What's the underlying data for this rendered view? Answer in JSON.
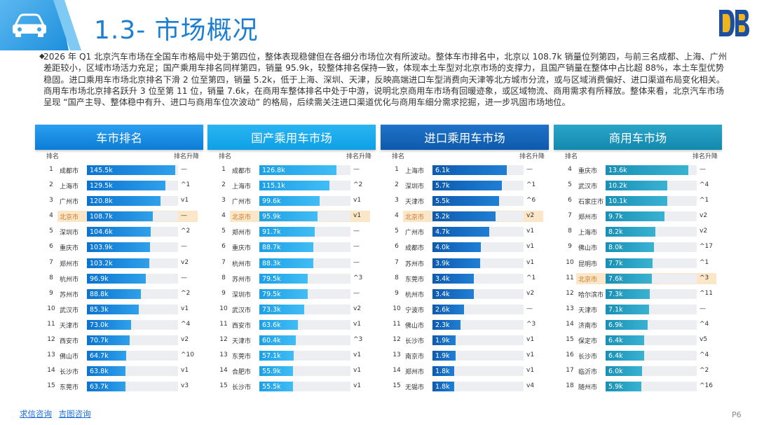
{
  "header": {
    "title": "1.3- 市场概况"
  },
  "intro": "2026 年 Q1 北京汽车市场在全国车市格局中处于第四位，整体表现稳健但在各细分市场位次有所波动。整体车市排名中，北京以 108.7k 销量位列第四，与前三名成都、上海、广州差距较小，区域市场活力充足；国产乘用车排名同样第四，销量 95.9k，较整体排名保持一致，体现本土车型对北京市场的支撑力，且国产销量在整体中占比超 88%，本土车型优势稳固。进口乘用车市场北京排名下滑 2 位至第四，销量 5.2k，低于上海、深圳、天津，反映高端进口车型消费向天津等北方城市分流，或与区域消费偏好、进口渠道布局变化相关。商用车市场北京排名跃升 3 位至第 11 位，销量 7.6k，在商用车整体排名中处于中游，说明北京商用车市场有回暖迹象，或区域物流、商用需求有所释放。整体来看，北京汽车市场呈现 “国产主导、整体稳中有升、进口与商用车位次波动” 的格局，后续需关注进口渠道优化与商用车细分需求挖掘，进一步巩固市场地位。",
  "col_rank": "排名",
  "col_change": "排名升降",
  "panels": [
    {
      "title": "车市排名",
      "max": 150,
      "rows": [
        {
          "rank": "1",
          "city": "成都市",
          "val": "145.5k",
          "num": 145.5,
          "chg": "—"
        },
        {
          "rank": "2",
          "city": "上海市",
          "val": "129.5k",
          "num": 129.5,
          "chg": "^1"
        },
        {
          "rank": "3",
          "city": "广州市",
          "val": "120.8k",
          "num": 120.8,
          "chg": "v1"
        },
        {
          "rank": "4",
          "city": "北京市",
          "val": "108.7k",
          "num": 108.7,
          "chg": "—",
          "hl": true
        },
        {
          "rank": "5",
          "city": "深圳市",
          "val": "104.6k",
          "num": 104.6,
          "chg": "^2"
        },
        {
          "rank": "6",
          "city": "重庆市",
          "val": "103.9k",
          "num": 103.9,
          "chg": "—"
        },
        {
          "rank": "7",
          "city": "郑州市",
          "val": "103.2k",
          "num": 103.2,
          "chg": "v2"
        },
        {
          "rank": "8",
          "city": "杭州市",
          "val": "96.9k",
          "num": 96.9,
          "chg": "—"
        },
        {
          "rank": "9",
          "city": "苏州市",
          "val": "88.8k",
          "num": 88.8,
          "chg": "^2"
        },
        {
          "rank": "10",
          "city": "武汉市",
          "val": "85.3k",
          "num": 85.3,
          "chg": "v1"
        },
        {
          "rank": "11",
          "city": "天津市",
          "val": "73.0k",
          "num": 73.0,
          "chg": "^4"
        },
        {
          "rank": "12",
          "city": "西安市",
          "val": "70.7k",
          "num": 70.7,
          "chg": "v2"
        },
        {
          "rank": "13",
          "city": "佛山市",
          "val": "64.7k",
          "num": 64.7,
          "chg": "^10"
        },
        {
          "rank": "14",
          "city": "长沙市",
          "val": "63.8k",
          "num": 63.8,
          "chg": "v1"
        },
        {
          "rank": "15",
          "city": "东莞市",
          "val": "63.7k",
          "num": 63.7,
          "chg": "v3"
        }
      ]
    },
    {
      "title": "国产乘用车市场",
      "max": 150,
      "rows": [
        {
          "rank": "1",
          "city": "成都市",
          "val": "126.8k",
          "num": 126.8,
          "chg": "—"
        },
        {
          "rank": "2",
          "city": "上海市",
          "val": "115.1k",
          "num": 115.1,
          "chg": "^2"
        },
        {
          "rank": "3",
          "city": "广州市",
          "val": "99.6k",
          "num": 99.6,
          "chg": "v1"
        },
        {
          "rank": "4",
          "city": "北京市",
          "val": "95.9k",
          "num": 95.9,
          "chg": "v1",
          "hl": true
        },
        {
          "rank": "5",
          "city": "郑州市",
          "val": "91.7k",
          "num": 91.7,
          "chg": "—"
        },
        {
          "rank": "6",
          "city": "重庆市",
          "val": "88.7k",
          "num": 88.7,
          "chg": "—"
        },
        {
          "rank": "7",
          "city": "杭州市",
          "val": "88.3k",
          "num": 88.3,
          "chg": "—"
        },
        {
          "rank": "8",
          "city": "苏州市",
          "val": "79.5k",
          "num": 79.5,
          "chg": "^3"
        },
        {
          "rank": "9",
          "city": "深圳市",
          "val": "79.5k",
          "num": 79.5,
          "chg": "—"
        },
        {
          "rank": "10",
          "city": "武汉市",
          "val": "73.3k",
          "num": 73.3,
          "chg": "v2"
        },
        {
          "rank": "11",
          "city": "西安市",
          "val": "63.6k",
          "num": 63.6,
          "chg": "v1"
        },
        {
          "rank": "12",
          "city": "天津市",
          "val": "60.4k",
          "num": 60.4,
          "chg": "^3"
        },
        {
          "rank": "13",
          "city": "东莞市",
          "val": "57.1k",
          "num": 57.1,
          "chg": "v1"
        },
        {
          "rank": "14",
          "city": "合肥市",
          "val": "55.9k",
          "num": 55.9,
          "chg": "v1"
        },
        {
          "rank": "15",
          "city": "长沙市",
          "val": "55.5k",
          "num": 55.5,
          "chg": "v1"
        }
      ]
    },
    {
      "title": "进口乘用车市场",
      "max": 7.5,
      "rows": [
        {
          "rank": "1",
          "city": "上海市",
          "val": "6.1k",
          "num": 6.1,
          "chg": "—"
        },
        {
          "rank": "2",
          "city": "深圳市",
          "val": "5.7k",
          "num": 5.7,
          "chg": "^1"
        },
        {
          "rank": "3",
          "city": "天津市",
          "val": "5.5k",
          "num": 5.5,
          "chg": "^6"
        },
        {
          "rank": "4",
          "city": "北京市",
          "val": "5.2k",
          "num": 5.2,
          "chg": "v2",
          "hl": true
        },
        {
          "rank": "5",
          "city": "广州市",
          "val": "4.7k",
          "num": 4.7,
          "chg": "v1"
        },
        {
          "rank": "6",
          "city": "成都市",
          "val": "4.0k",
          "num": 4.0,
          "chg": "v1"
        },
        {
          "rank": "7",
          "city": "苏州市",
          "val": "3.9k",
          "num": 3.9,
          "chg": "v1"
        },
        {
          "rank": "8",
          "city": "东莞市",
          "val": "3.4k",
          "num": 3.4,
          "chg": "^1"
        },
        {
          "rank": "9",
          "city": "杭州市",
          "val": "3.4k",
          "num": 3.4,
          "chg": "v2"
        },
        {
          "rank": "10",
          "city": "宁波市",
          "val": "2.6k",
          "num": 2.6,
          "chg": "—"
        },
        {
          "rank": "11",
          "city": "佛山市",
          "val": "2.3k",
          "num": 2.3,
          "chg": "^3"
        },
        {
          "rank": "12",
          "city": "长沙市",
          "val": "1.9k",
          "num": 1.9,
          "chg": "v1"
        },
        {
          "rank": "13",
          "city": "南京市",
          "val": "1.9k",
          "num": 1.9,
          "chg": "v1"
        },
        {
          "rank": "14",
          "city": "郑州市",
          "val": "1.8k",
          "num": 1.8,
          "chg": "v1"
        },
        {
          "rank": "15",
          "city": "无锡市",
          "val": "1.8k",
          "num": 1.8,
          "chg": "v4"
        }
      ]
    },
    {
      "title": "商用车市场",
      "max": 15,
      "rows": [
        {
          "rank": "4",
          "city": "重庆市",
          "val": "13.6k",
          "num": 13.6,
          "chg": "—"
        },
        {
          "rank": "5",
          "city": "武汉市",
          "val": "10.2k",
          "num": 10.2,
          "chg": "^4"
        },
        {
          "rank": "6",
          "city": "石家庄市",
          "val": "10.1k",
          "num": 10.1,
          "chg": "^1"
        },
        {
          "rank": "7",
          "city": "郑州市",
          "val": "9.7k",
          "num": 9.7,
          "chg": "v2"
        },
        {
          "rank": "8",
          "city": "上海市",
          "val": "8.2k",
          "num": 8.2,
          "chg": "v2"
        },
        {
          "rank": "9",
          "city": "佛山市",
          "val": "8.0k",
          "num": 8.0,
          "chg": "^17"
        },
        {
          "rank": "10",
          "city": "昆明市",
          "val": "7.7k",
          "num": 7.7,
          "chg": "^1"
        },
        {
          "rank": "11",
          "city": "北京市",
          "val": "7.6k",
          "num": 7.6,
          "chg": "^3",
          "hl": true
        },
        {
          "rank": "12",
          "city": "哈尔滨市",
          "val": "7.3k",
          "num": 7.3,
          "chg": "^11"
        },
        {
          "rank": "13",
          "city": "天津市",
          "val": "7.1k",
          "num": 7.1,
          "chg": "—"
        },
        {
          "rank": "14",
          "city": "济南市",
          "val": "6.9k",
          "num": 6.9,
          "chg": "^4"
        },
        {
          "rank": "15",
          "city": "保定市",
          "val": "6.4k",
          "num": 6.4,
          "chg": "v5"
        },
        {
          "rank": "16",
          "city": "长沙市",
          "val": "6.4k",
          "num": 6.4,
          "chg": "^4"
        },
        {
          "rank": "17",
          "city": "临沂市",
          "val": "6.0k",
          "num": 6.0,
          "chg": "^2"
        },
        {
          "rank": "18",
          "city": "随州市",
          "val": "5.9k",
          "num": 5.9,
          "chg": "^16"
        }
      ]
    }
  ],
  "footer": {
    "link1": "求信咨询",
    "link2": "吉图咨询"
  },
  "page_number": "P6"
}
